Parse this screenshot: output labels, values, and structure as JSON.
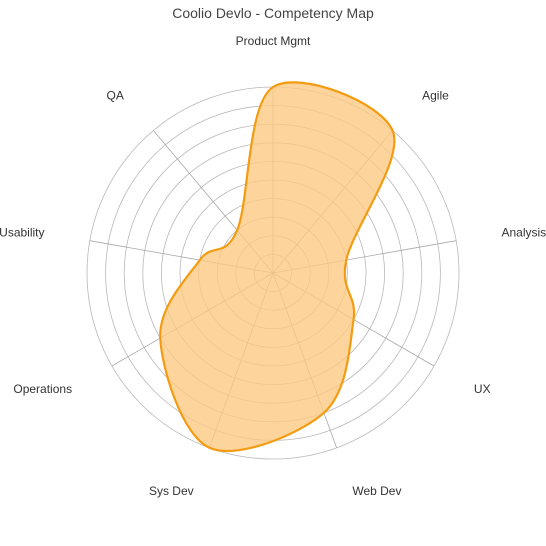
{
  "chart_data": {
    "type": "radar",
    "title": "Coolio Devlo - Competency Map",
    "axes": [
      "Product Mgmt",
      "Agile",
      "Analysis",
      "UX",
      "Web Dev",
      "Sys Dev",
      "Operations",
      "Usability",
      "QA"
    ],
    "series": [
      {
        "values": [
          10,
          10,
          4,
          5,
          8,
          10,
          7,
          4,
          3
        ]
      }
    ],
    "rlim": [
      0,
      10
    ],
    "rings": 10,
    "grid": true,
    "legend": "none",
    "colors": {
      "area_fill": "#fcc982",
      "area_stroke": "#f39c12",
      "grid": "#b8b8b8"
    }
  }
}
